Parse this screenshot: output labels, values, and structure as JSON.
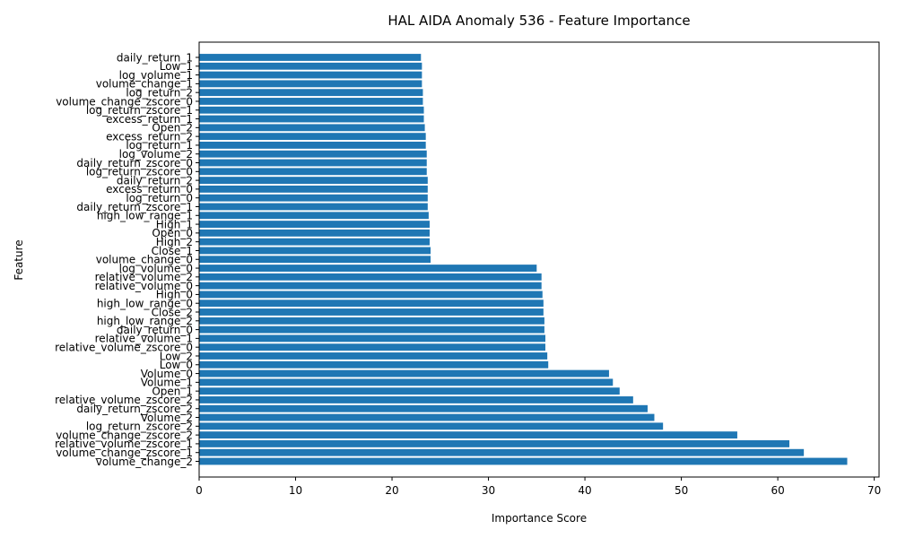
{
  "chart_data": {
    "type": "bar",
    "orientation": "horizontal",
    "title": "HAL AIDA Anomaly 536 - Feature Importance",
    "xlabel": "Importance Score",
    "ylabel": "Feature",
    "xlim": [
      0,
      70.5
    ],
    "xticks": [
      0,
      10,
      20,
      30,
      40,
      50,
      60,
      70
    ],
    "grid": false,
    "bar_color": "#1f77b4",
    "categories": [
      "volume_change_2",
      "volume_change_zscore_1",
      "relative_volume_zscore_1",
      "volume_change_zscore_2",
      "log_return_zscore_2",
      "Volume_2",
      "daily_return_zscore_2",
      "relative_volume_zscore_2",
      "Open_1",
      "Volume_1",
      "Volume_0",
      "Low_0",
      "Low_2",
      "relative_volume_zscore_0",
      "relative_volume_1",
      "daily_return_0",
      "high_low_range_2",
      "Close_2",
      "high_low_range_0",
      "High_0",
      "relative_volume_0",
      "relative_volume_2",
      "log_volume_0",
      "volume_change_0",
      "Close_1",
      "High_2",
      "Open_0",
      "High_1",
      "high_low_range_1",
      "daily_return_zscore_1",
      "log_return_0",
      "excess_return_0",
      "daily_return_2",
      "log_return_zscore_0",
      "daily_return_zscore_0",
      "log_volume_2",
      "log_return_1",
      "excess_return_2",
      "Open_2",
      "excess_return_1",
      "log_return_zscore_1",
      "volume_change_zscore_0",
      "log_return_2",
      "volume_change_1",
      "log_volume_1",
      "Low_1",
      "daily_return_1"
    ],
    "values": [
      67.2,
      62.7,
      61.2,
      55.8,
      48.1,
      47.2,
      46.5,
      45.0,
      43.6,
      42.9,
      42.5,
      36.2,
      36.1,
      35.9,
      35.9,
      35.8,
      35.8,
      35.7,
      35.7,
      35.6,
      35.5,
      35.5,
      35.0,
      24.0,
      24.0,
      23.9,
      23.9,
      23.9,
      23.8,
      23.7,
      23.7,
      23.7,
      23.7,
      23.6,
      23.6,
      23.6,
      23.5,
      23.5,
      23.4,
      23.3,
      23.3,
      23.2,
      23.2,
      23.1,
      23.1,
      23.1,
      23.0
    ]
  }
}
